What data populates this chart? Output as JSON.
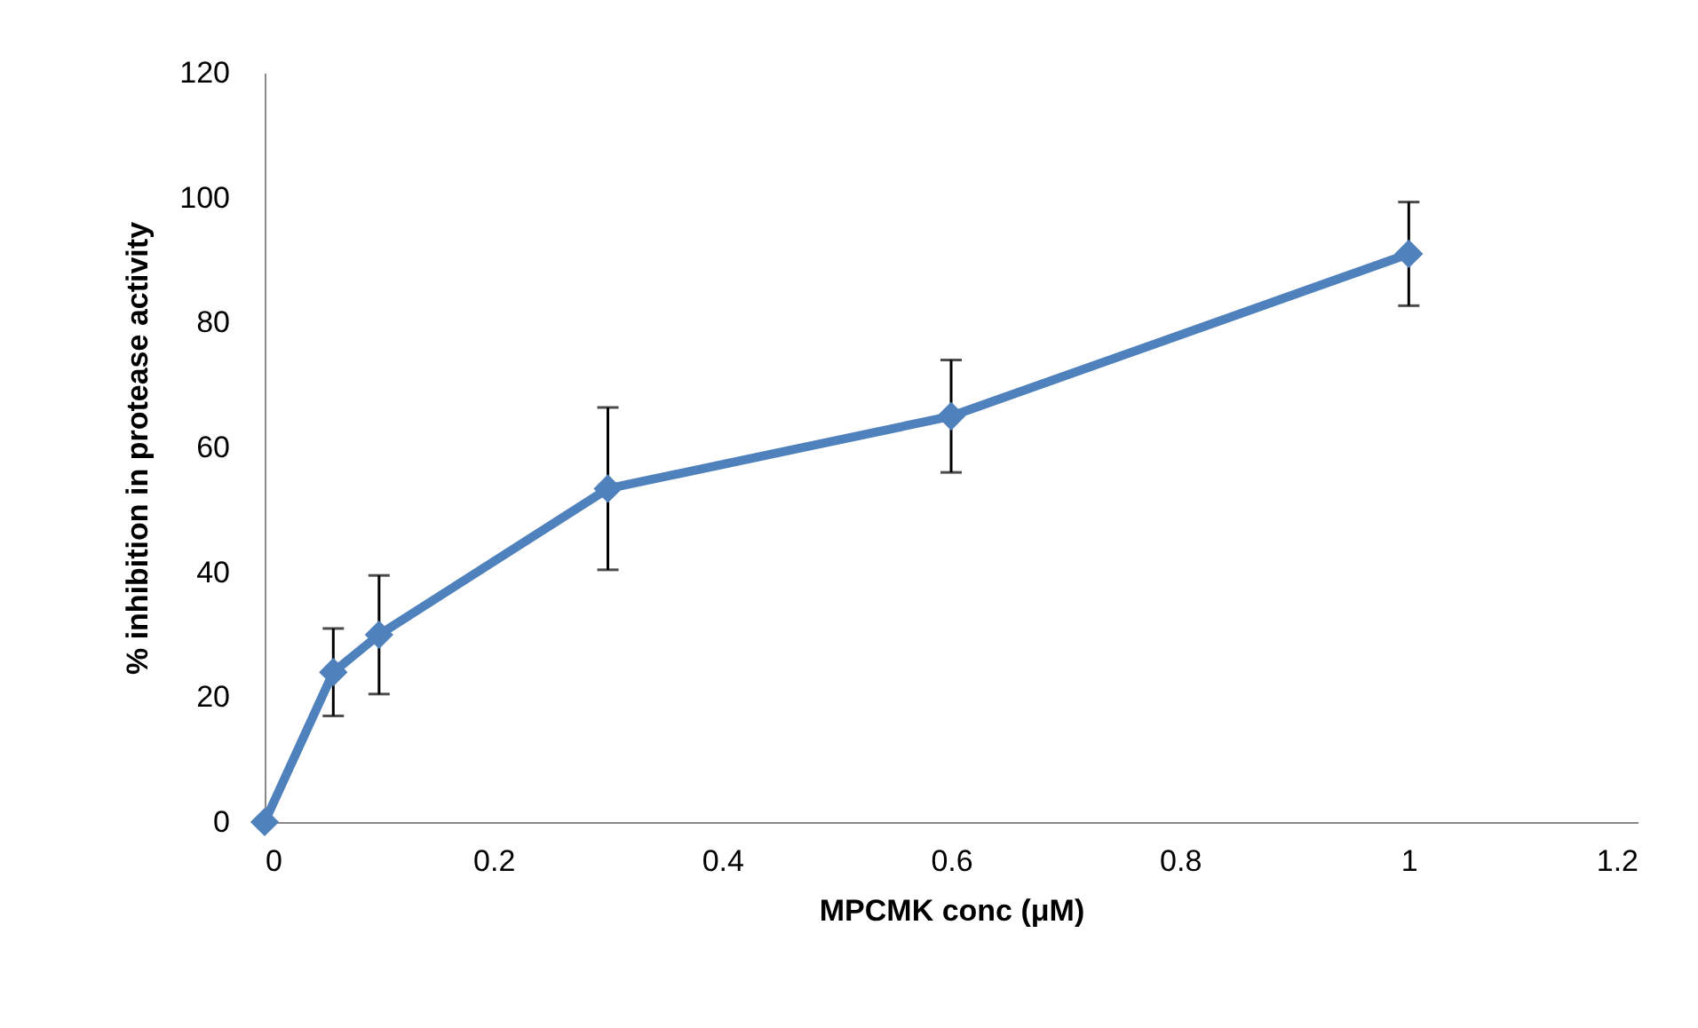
{
  "chart_data": {
    "type": "line",
    "xlabel": "MPCMK conc (μM)",
    "ylabel": "% inhibition in protease activity",
    "x": [
      0,
      0.06,
      0.1,
      0.3,
      0.6,
      1
    ],
    "series": [
      {
        "color": "#4f81bd",
        "values": [
          0,
          24,
          30,
          53.4,
          65,
          91
        ],
        "errors": [
          null,
          7,
          9.5,
          13,
          9,
          8.3
        ]
      }
    ],
    "xlim": [
      0,
      1.2
    ],
    "xticks": [
      0,
      0.2,
      0.4,
      0.6,
      0.8,
      1,
      1.2
    ],
    "ylim": [
      0,
      120
    ],
    "yticks": [
      0,
      20,
      40,
      60,
      80,
      100,
      120
    ],
    "grid": false,
    "marker": "diamond",
    "line_style": "solid"
  }
}
